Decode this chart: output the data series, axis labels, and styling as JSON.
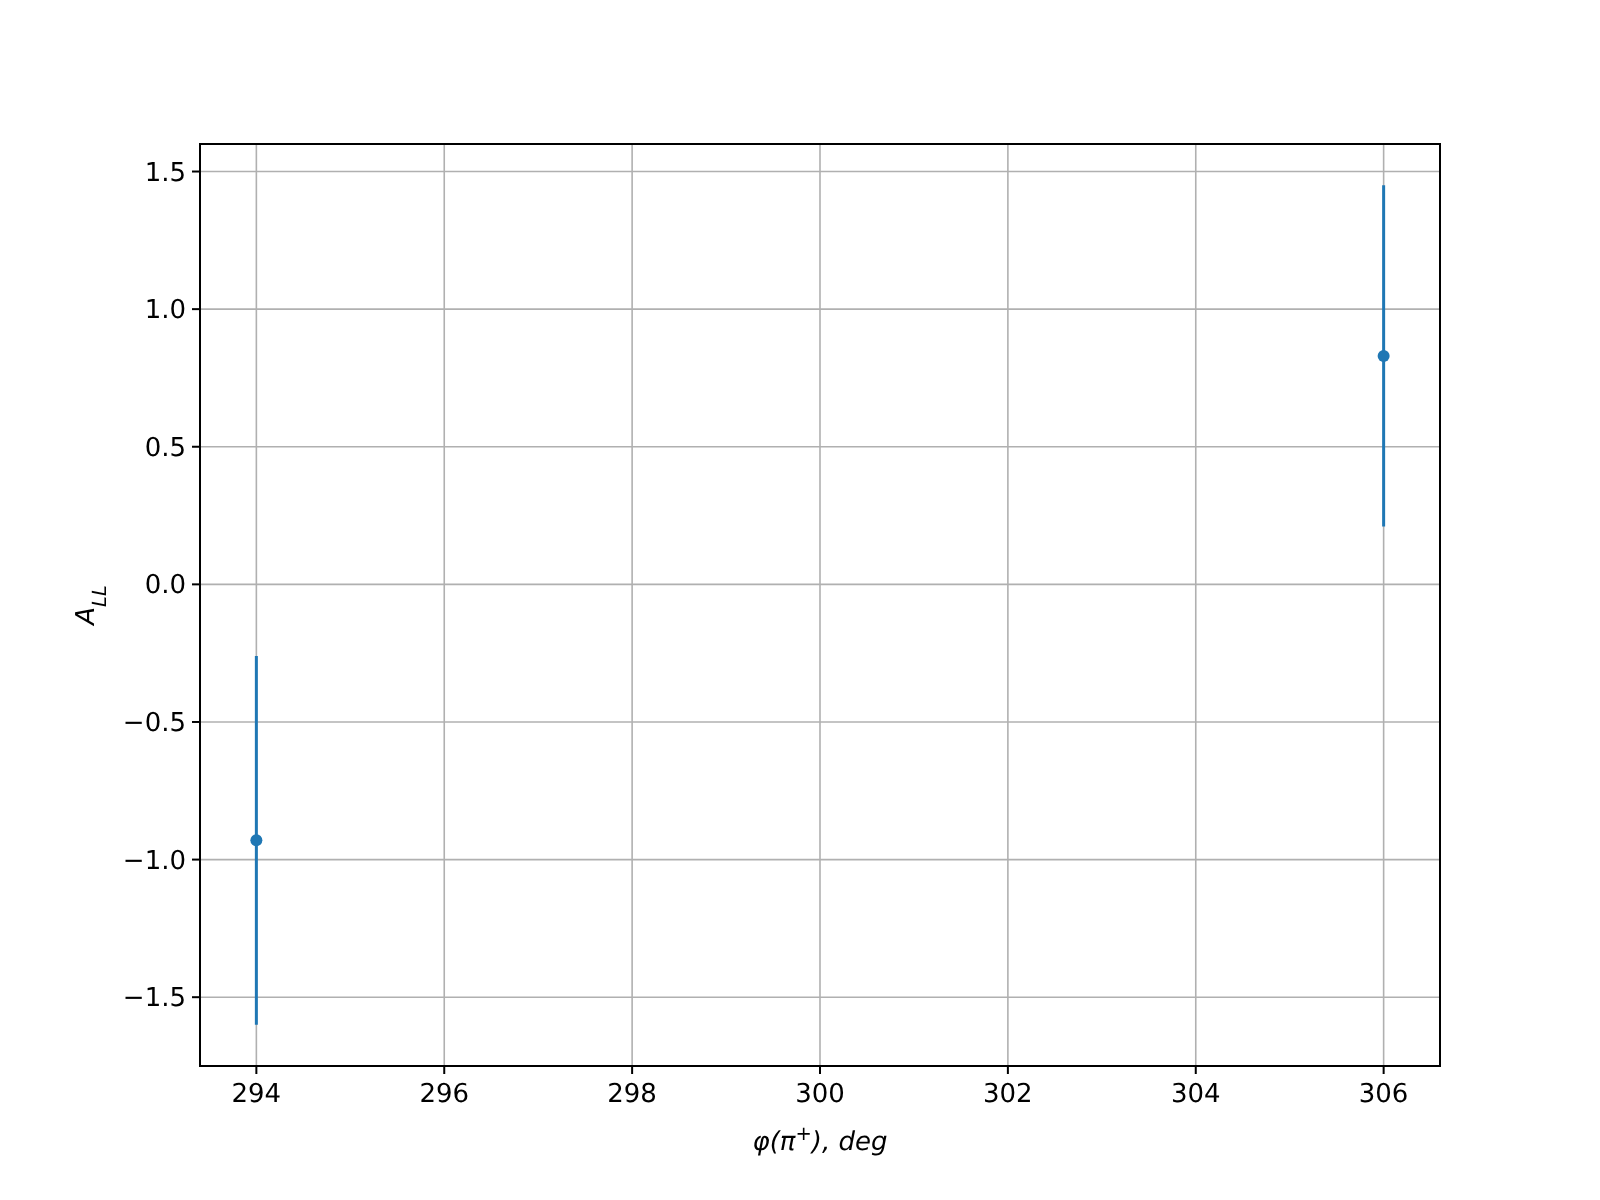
{
  "chart_data": {
    "type": "scatter",
    "xlabel": "φ(π$^{+}$), deg",
    "ylabel": "A$_{LL}$",
    "x": [
      294,
      306
    ],
    "series": [
      {
        "color": "#1f77b4",
        "values": [
          -0.93,
          0.83
        ],
        "errors": [
          0.67,
          0.62
        ]
      }
    ],
    "xlim": [
      293.4,
      306.6
    ],
    "xticks": [
      294,
      296,
      298,
      300,
      302,
      304,
      306
    ],
    "ylim": [
      -1.75,
      1.6
    ],
    "yticks": [
      {
        "value": -1.5,
        "label": "−1.5"
      },
      {
        "value": -1.0,
        "label": "−1.0"
      },
      {
        "value": -0.5,
        "label": "−0.5"
      },
      {
        "value": 0,
        "label": "0.0"
      },
      {
        "value": 0.5,
        "label": "0.5"
      },
      {
        "value": 1.0,
        "label": "1.0"
      },
      {
        "value": 1.5,
        "label": "1.5"
      }
    ],
    "grid": true,
    "marker": "circle"
  }
}
